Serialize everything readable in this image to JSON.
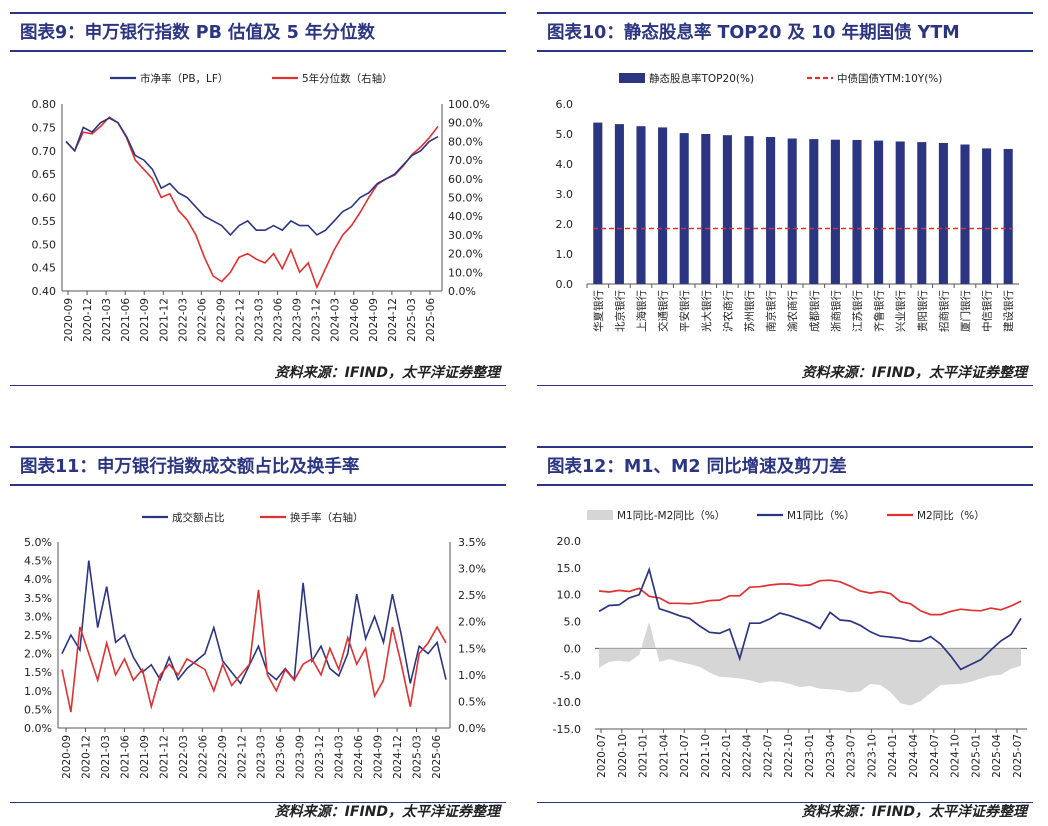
{
  "charts": [
    {
      "title": "图表9：申万银行指数 PB 估值及 5 年分位数",
      "source": "资料来源：IFIND，太平洋证券整理",
      "chart_data": {
        "type": "line",
        "x_ticks": [
          "2020-09",
          "2020-12",
          "2021-03",
          "2021-06",
          "2021-09",
          "2021-12",
          "2022-03",
          "2022-06",
          "2022-09",
          "2022-12",
          "2023-03",
          "2023-06",
          "2023-09",
          "2023-12",
          "2024-03",
          "2024-06",
          "2024-09",
          "2024-12",
          "2025-03",
          "2025-06"
        ],
        "y_left": [
          0.4,
          0.8
        ],
        "y_left_ticks": [
          "0.40",
          "0.45",
          "0.50",
          "0.55",
          "0.60",
          "0.65",
          "0.70",
          "0.75",
          "0.80"
        ],
        "y_right": [
          0,
          100
        ],
        "y_right_ticks": [
          "0.0%",
          "10.0%",
          "20.0%",
          "30.0%",
          "40.0%",
          "50.0%",
          "60.0%",
          "70.0%",
          "80.0%",
          "90.0%",
          "100.0%"
        ],
        "series": [
          {
            "name": "市净率（PB，LF）",
            "color": "#2b3582",
            "axis": "left",
            "values": [
              0.72,
              0.7,
              0.75,
              0.74,
              0.76,
              0.77,
              0.76,
              0.73,
              0.69,
              0.68,
              0.66,
              0.62,
              0.63,
              0.61,
              0.6,
              0.58,
              0.56,
              0.55,
              0.54,
              0.52,
              0.54,
              0.55,
              0.53,
              0.53,
              0.54,
              0.53,
              0.55,
              0.54,
              0.54,
              0.52,
              0.53,
              0.55,
              0.57,
              0.58,
              0.6,
              0.61,
              0.63,
              0.64,
              0.65,
              0.67,
              0.69,
              0.7,
              0.72,
              0.73
            ]
          },
          {
            "name": "5年分位数（右轴）",
            "color": "#e03030",
            "axis": "right",
            "values": [
              80,
              75,
              85,
              84,
              88,
              93,
              90,
              82,
              70,
              65,
              60,
              50,
              52,
              43,
              38,
              30,
              18,
              8,
              5,
              10,
              18,
              20,
              17,
              15,
              20,
              12,
              22,
              10,
              15,
              2,
              12,
              22,
              30,
              35,
              42,
              50,
              57,
              60,
              62,
              67,
              73,
              77,
              82,
              88
            ]
          }
        ]
      }
    },
    {
      "title": "图表10：静态股息率 TOP20 及 10 年期国债 YTM",
      "source": "资料来源：IFIND，太平洋证券整理",
      "chart_data": {
        "type": "bar",
        "categories": [
          "华夏银行",
          "北京银行",
          "上海银行",
          "交通银行",
          "平安银行",
          "光大银行",
          "沪农商行",
          "苏州银行",
          "南京银行",
          "渝农商行",
          "成都银行",
          "浙商银行",
          "江苏银行",
          "齐鲁银行",
          "兴业银行",
          "贵阳银行",
          "招商银行",
          "厦门银行",
          "中信银行",
          "建设银行"
        ],
        "ylim": [
          0,
          6
        ],
        "y_ticks": [
          "0.0",
          "1.0",
          "2.0",
          "3.0",
          "4.0",
          "5.0",
          "6.0"
        ],
        "series": [
          {
            "name": "静态股息率TOP20(%)",
            "color": "#2b3582",
            "values": [
              5.38,
              5.33,
              5.26,
              5.22,
              5.03,
              5.0,
              4.96,
              4.93,
              4.9,
              4.85,
              4.83,
              4.81,
              4.8,
              4.78,
              4.75,
              4.73,
              4.7,
              4.65,
              4.52,
              4.5
            ]
          },
          {
            "name": "中债国债YTM:10Y(%)",
            "color": "#e03030",
            "dashed": true,
            "value": 1.85
          }
        ]
      }
    },
    {
      "title": "图表11：申万银行指数成交额占比及换手率",
      "source": "资料来源：IFIND，太平洋证券整理",
      "chart_data": {
        "type": "line",
        "x_ticks": [
          "2020-09",
          "2020-12",
          "2021-03",
          "2021-06",
          "2021-09",
          "2021-12",
          "2022-03",
          "2022-06",
          "2022-09",
          "2022-12",
          "2023-03",
          "2023-06",
          "2023-09",
          "2023-12",
          "2024-03",
          "2024-06",
          "2024-09",
          "2024-12",
          "2025-03",
          "2025-06"
        ],
        "y_left": [
          0,
          5
        ],
        "y_left_ticks": [
          "0.0%",
          "0.5%",
          "1.0%",
          "1.5%",
          "2.0%",
          "2.5%",
          "3.0%",
          "3.5%",
          "4.0%",
          "4.5%",
          "5.0%"
        ],
        "y_right": [
          0,
          3.5
        ],
        "y_right_ticks": [
          "0.0%",
          "0.5%",
          "1.0%",
          "1.5%",
          "2.0%",
          "2.5%",
          "3.0%",
          "3.5%"
        ],
        "series": [
          {
            "name": "成交额占比",
            "color": "#2b3582",
            "axis": "left",
            "values": [
              2.0,
              2.5,
              2.1,
              4.5,
              2.7,
              3.8,
              2.3,
              2.5,
              1.9,
              1.5,
              1.7,
              1.3,
              1.9,
              1.3,
              1.6,
              1.8,
              2.0,
              2.7,
              1.8,
              1.5,
              1.2,
              1.7,
              2.2,
              1.5,
              1.3,
              1.6,
              1.3,
              3.9,
              1.8,
              2.2,
              1.6,
              1.4,
              2.0,
              3.6,
              2.4,
              3.0,
              2.3,
              3.6,
              2.5,
              1.2,
              2.2,
              2.0,
              2.3,
              1.3
            ]
          },
          {
            "name": "换手率（右轴）",
            "color": "#e03030",
            "axis": "right",
            "values": [
              1.1,
              0.3,
              1.9,
              1.4,
              0.9,
              1.6,
              1.0,
              1.3,
              0.9,
              1.1,
              0.4,
              1.0,
              1.2,
              1.0,
              1.3,
              1.2,
              1.1,
              0.7,
              1.2,
              0.8,
              1.0,
              1.2,
              2.6,
              1.0,
              0.7,
              1.1,
              0.9,
              1.2,
              1.3,
              1.0,
              1.5,
              1.1,
              1.7,
              1.2,
              1.5,
              0.6,
              0.9,
              1.9,
              1.2,
              0.4,
              1.4,
              1.6,
              1.9,
              1.6
            ]
          }
        ]
      }
    },
    {
      "title": "图表12：M1、M2 同比增速及剪刀差",
      "source": "资料来源：IFIND，太平洋证券整理",
      "chart_data": {
        "type": "area",
        "x_ticks": [
          "2020-07",
          "2020-10",
          "2021-01",
          "2021-04",
          "2021-07",
          "2021-10",
          "2022-01",
          "2022-04",
          "2022-07",
          "2022-10",
          "2023-01",
          "2023-04",
          "2023-07",
          "2023-10",
          "2024-01",
          "2024-04",
          "2024-07",
          "2024-10",
          "2025-01",
          "2025-04",
          "2025-07"
        ],
        "ylim": [
          -15,
          20
        ],
        "y_ticks": [
          "-15.0",
          "-10.0",
          "-5.0",
          "0.0",
          "5.0",
          "10.0",
          "15.0",
          "20.0"
        ],
        "series": [
          {
            "name": "M1同比-M2同比（%）",
            "color": "#d6d6d6",
            "type": "area",
            "values": [
              -3.6,
              -2.5,
              -2.3,
              -2.5,
              -1.2,
              5.0,
              -2.5,
              -2.0,
              -2.5,
              -2.9,
              -3.4,
              -4.5,
              -5.3,
              -5.4,
              -5.6,
              -5.9,
              -6.5,
              -6.1,
              -6.2,
              -6.6,
              -7.2,
              -7.0,
              -7.5,
              -7.6,
              -7.8,
              -8.2,
              -8.0,
              -6.6,
              -6.8,
              -8.1,
              -10.2,
              -10.6,
              -9.8,
              -8.3,
              -6.8,
              -6.7,
              -6.6,
              -6.2,
              -5.6,
              -5.1,
              -4.9,
              -3.8,
              -3.2
            ]
          },
          {
            "name": "M1同比（%）",
            "color": "#2b3582",
            "type": "line",
            "values": [
              6.9,
              8.0,
              8.1,
              9.4,
              10.0,
              14.7,
              7.4,
              6.8,
              6.1,
              5.6,
              4.2,
              3.0,
              2.8,
              3.6,
              -1.9,
              4.7,
              4.7,
              5.5,
              6.6,
              6.1,
              5.4,
              4.7,
              3.7,
              6.7,
              5.3,
              5.1,
              4.3,
              3.1,
              2.3,
              2.1,
              1.9,
              1.4,
              1.3,
              2.2,
              0.8,
              -1.4,
              -3.9,
              -3.0,
              -2.1,
              -0.3,
              1.4,
              2.6,
              5.6
            ]
          },
          {
            "name": "M2同比（%）",
            "color": "#e03030",
            "type": "line",
            "values": [
              10.7,
              10.5,
              10.8,
              10.6,
              11.2,
              9.7,
              9.4,
              8.4,
              8.4,
              8.3,
              8.5,
              8.9,
              9.0,
              9.8,
              9.8,
              11.4,
              11.5,
              11.8,
              12.0,
              12.0,
              11.7,
              11.8,
              12.6,
              12.7,
              12.4,
              11.6,
              10.7,
              10.3,
              10.6,
              10.2,
              8.7,
              8.3,
              7.0,
              6.3,
              6.3,
              6.9,
              7.3,
              7.1,
              7.0,
              7.5,
              7.2,
              7.9,
              8.8
            ]
          }
        ]
      }
    }
  ]
}
